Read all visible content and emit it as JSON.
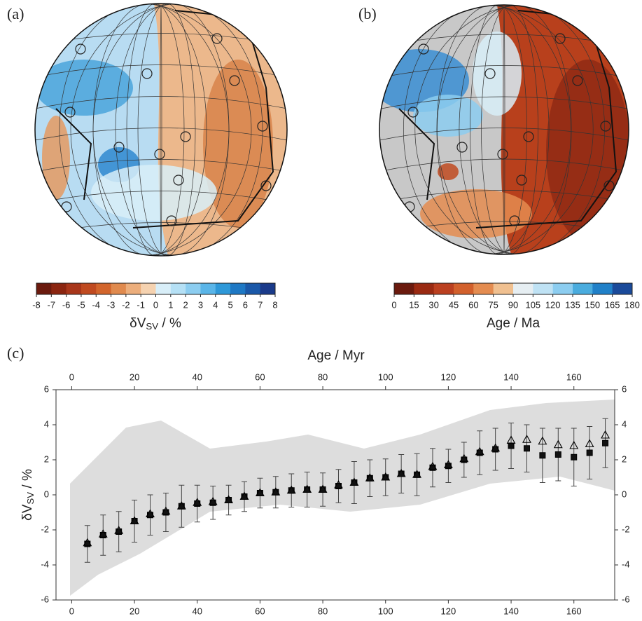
{
  "panel_labels": [
    "(a)",
    "(b)",
    "(c)"
  ],
  "colorbars": [
    {
      "label": {
        "main": "δV",
        "sub": "SV",
        "unit": " / %"
      },
      "ticks": [
        -8,
        -7,
        -6,
        -5,
        -4,
        -3,
        -2,
        -1,
        0,
        1,
        2,
        3,
        4,
        5,
        6,
        7,
        8
      ],
      "colors": [
        "#6b1a0e",
        "#8b2510",
        "#a8361a",
        "#c04a20",
        "#d2652c",
        "#e08a4e",
        "#ecae7c",
        "#f5d2b0",
        "#d8eef8",
        "#b5e0f5",
        "#8ccdf0",
        "#5ab5e8",
        "#2e98d8",
        "#1e78c4",
        "#1a58a8",
        "#1a3a8a"
      ]
    },
    {
      "label": {
        "main": "Age / Ma"
      },
      "ticks": [
        0,
        15,
        30,
        45,
        60,
        75,
        90,
        105,
        120,
        135,
        150,
        165,
        180
      ],
      "colors": [
        "#6b1a0e",
        "#9a2a12",
        "#bb4020",
        "#d2602c",
        "#e48c50",
        "#f0c090",
        "#e6eef2",
        "#bfe2f4",
        "#8ccdf0",
        "#4aacde",
        "#2080c8",
        "#1a4a9a"
      ]
    }
  ],
  "chart_data": {
    "type": "errorbar",
    "title": "Age / Myr",
    "ylabel": {
      "main": "δV",
      "sub": "SV",
      "unit": " / %"
    },
    "x": [
      5,
      10,
      15,
      20,
      25,
      30,
      35,
      40,
      45,
      50,
      55,
      60,
      65,
      70,
      75,
      80,
      85,
      90,
      95,
      100,
      105,
      110,
      115,
      120,
      125,
      130,
      135,
      140,
      145,
      150,
      155,
      160,
      165,
      170
    ],
    "series": [
      {
        "marker": "square",
        "color": "#111111",
        "values": [
          -2.8,
          -2.3,
          -2.1,
          -1.5,
          -1.15,
          -1.0,
          -0.65,
          -0.5,
          -0.45,
          -0.3,
          -0.1,
          0.1,
          0.15,
          0.25,
          0.3,
          0.3,
          0.5,
          0.7,
          0.95,
          1.0,
          1.2,
          1.15,
          1.55,
          1.65,
          2.0,
          2.4,
          2.6,
          2.8,
          2.65,
          2.25,
          2.3,
          2.15,
          2.4,
          2.95
        ],
        "errors": [
          1.05,
          1.15,
          1.15,
          1.2,
          1.15,
          1.1,
          1.2,
          1.05,
          0.95,
          0.85,
          0.85,
          0.85,
          0.9,
          0.95,
          1.0,
          0.95,
          0.95,
          1.2,
          1.05,
          1.05,
          1.1,
          1.2,
          1.1,
          0.95,
          1.0,
          1.25,
          1.2,
          1.3,
          1.35,
          1.55,
          1.5,
          1.65,
          1.5,
          1.4
        ]
      },
      {
        "marker": "triangle",
        "color": "#ffffff",
        "values": [
          -2.75,
          -2.25,
          -2.05,
          -1.5,
          -1.1,
          -0.95,
          -0.65,
          -0.45,
          -0.4,
          -0.3,
          -0.1,
          0.1,
          0.15,
          0.25,
          0.3,
          0.3,
          0.55,
          0.7,
          0.95,
          1.0,
          1.2,
          1.15,
          1.6,
          1.7,
          2.05,
          2.45,
          2.65,
          3.1,
          3.15,
          3.05,
          2.85,
          2.8,
          2.9,
          3.4
        ]
      }
    ],
    "xlim": [
      -5,
      173
    ],
    "ylim": [
      -6,
      6
    ],
    "xticks": [
      0,
      20,
      40,
      60,
      80,
      100,
      120,
      140,
      160
    ],
    "yticks": [
      -6,
      -4,
      -2,
      0,
      2,
      4,
      6
    ]
  }
}
